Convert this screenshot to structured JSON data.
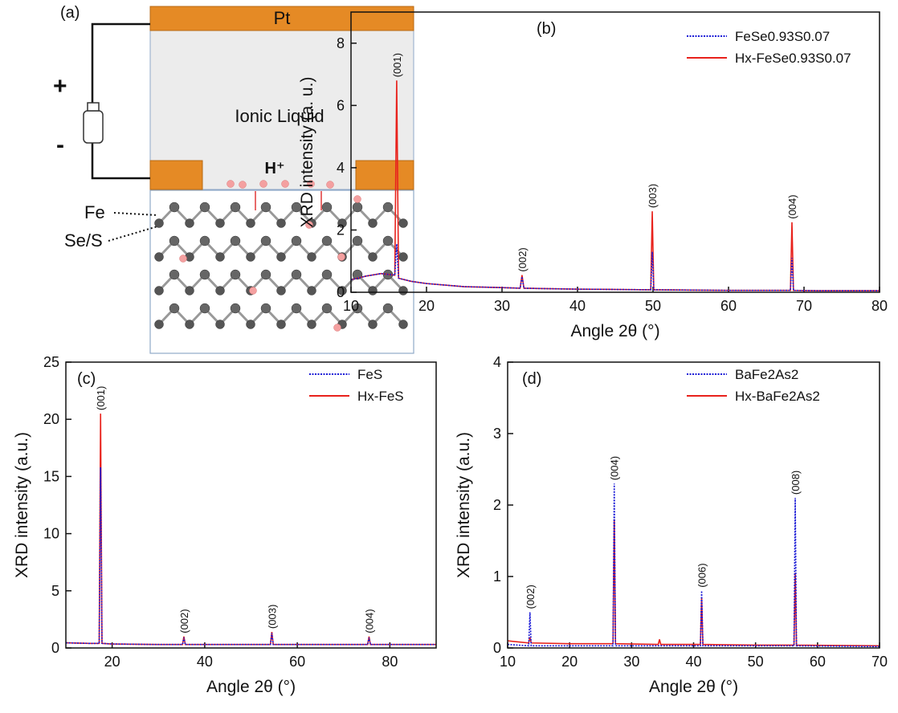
{
  "diagram": {
    "panel_label": "(a)",
    "electrode": "Pt",
    "electrolyte": "Ionic Liquid",
    "ion": "H⁺",
    "plus": "+",
    "minus": "-",
    "atom_1": "Fe",
    "atom_2": "Se/S"
  },
  "chart_data": [
    {
      "type": "line",
      "panel_label": "(b)",
      "x_label": "Angle 2θ (°)",
      "y_label": "XRD intensity (a. u.)",
      "x": [
        10,
        12,
        14,
        15.8,
        16.05,
        16.3,
        18,
        20,
        25,
        30,
        32.4,
        32.65,
        32.9,
        35,
        40,
        45,
        49.7,
        49.9,
        50.1,
        55,
        60,
        65,
        68.2,
        68.4,
        68.6,
        72,
        80
      ],
      "series": [
        {
          "name": "Hx-FeSe0.93S0.07",
          "color": "#e8221c",
          "style": "solid",
          "values": [
            0.4,
            0.52,
            0.6,
            0.55,
            6.8,
            0.45,
            0.35,
            0.28,
            0.18,
            0.15,
            0.13,
            0.55,
            0.13,
            0.12,
            0.1,
            0.09,
            0.08,
            2.6,
            0.08,
            0.07,
            0.06,
            0.06,
            0.06,
            2.25,
            0.06,
            0.05,
            0.05
          ]
        },
        {
          "name": "FeSe0.93S0.07",
          "color": "#1a1ad6",
          "style": "dotted",
          "values": [
            0.4,
            0.52,
            0.6,
            0.55,
            1.55,
            0.45,
            0.35,
            0.28,
            0.18,
            0.15,
            0.13,
            0.5,
            0.13,
            0.12,
            0.1,
            0.09,
            0.08,
            1.3,
            0.08,
            0.07,
            0.06,
            0.06,
            0.06,
            1.1,
            0.06,
            0.05,
            0.05
          ]
        }
      ],
      "xlim": [
        10,
        80
      ],
      "xticks": [
        10,
        20,
        30,
        40,
        50,
        60,
        70,
        80
      ],
      "ylim": [
        0,
        9
      ],
      "yticks": [
        0,
        2,
        4,
        6,
        8
      ],
      "legend": "upper right",
      "annotations": [
        {
          "text": "(001)",
          "x": 16.05,
          "y": 6.8
        },
        {
          "text": "(002)",
          "x": 32.65,
          "y": 0.55
        },
        {
          "text": "(003)",
          "x": 49.9,
          "y": 2.6
        },
        {
          "text": "(004)",
          "x": 68.4,
          "y": 2.25
        }
      ]
    },
    {
      "type": "line",
      "panel_label": "(c)",
      "x_label": "Angle 2θ (°)",
      "y_label": "XRD intensity (a.u.)",
      "x": [
        10,
        15,
        17.2,
        17.5,
        17.8,
        20,
        30,
        35.2,
        35.5,
        35.8,
        45,
        54.2,
        54.5,
        54.8,
        65,
        75.2,
        75.5,
        75.8,
        90
      ],
      "series": [
        {
          "name": "Hx-FeS",
          "color": "#e8221c",
          "style": "solid",
          "values": [
            0.45,
            0.4,
            0.4,
            20.5,
            0.4,
            0.35,
            0.3,
            0.3,
            1.0,
            0.3,
            0.3,
            0.3,
            1.4,
            0.3,
            0.3,
            0.3,
            1.0,
            0.3,
            0.3
          ]
        },
        {
          "name": "FeS",
          "color": "#1a1ad6",
          "style": "dotted",
          "values": [
            0.45,
            0.4,
            0.4,
            15.8,
            0.4,
            0.35,
            0.3,
            0.3,
            0.9,
            0.3,
            0.3,
            0.3,
            1.3,
            0.3,
            0.3,
            0.3,
            0.9,
            0.3,
            0.3
          ]
        }
      ],
      "xlim": [
        10,
        90
      ],
      "xticks": [
        20,
        40,
        60,
        80
      ],
      "ylim": [
        0,
        25
      ],
      "yticks": [
        0,
        5,
        10,
        15,
        20,
        25
      ],
      "legend": "upper right",
      "annotations": [
        {
          "text": "(001)",
          "x": 17.5,
          "y": 20.5
        },
        {
          "text": "(002)",
          "x": 35.5,
          "y": 1.0
        },
        {
          "text": "(003)",
          "x": 54.5,
          "y": 1.4
        },
        {
          "text": "(004)",
          "x": 75.5,
          "y": 1.0
        }
      ]
    },
    {
      "type": "line",
      "panel_label": "(d)",
      "x_label": "Angle 2θ (°)",
      "y_label": "XRD intensity (a.u.)",
      "x": [
        10,
        13.4,
        13.6,
        13.8,
        20,
        27,
        27.2,
        27.4,
        34.3,
        34.5,
        34.7,
        41.1,
        41.3,
        41.5,
        50,
        56.2,
        56.4,
        56.6,
        70
      ],
      "series": [
        {
          "name": "Hx-BaFe2As2",
          "color": "#e8221c",
          "style": "solid",
          "values": [
            0.1,
            0.07,
            0.15,
            0.07,
            0.06,
            0.06,
            1.8,
            0.06,
            0.05,
            0.12,
            0.05,
            0.05,
            0.7,
            0.05,
            0.04,
            0.04,
            1.05,
            0.04,
            0.03
          ]
        },
        {
          "name": "BaFe2As2",
          "color": "#1a1ad6",
          "style": "dotted",
          "values": [
            0.05,
            0.03,
            0.5,
            0.03,
            0.03,
            0.03,
            2.3,
            0.03,
            0.03,
            0.03,
            0.03,
            0.03,
            0.8,
            0.03,
            0.03,
            0.03,
            2.1,
            0.03,
            0.02
          ]
        }
      ],
      "xlim": [
        10,
        70
      ],
      "xticks": [
        10,
        20,
        30,
        40,
        50,
        60,
        70
      ],
      "ylim": [
        0,
        4
      ],
      "yticks": [
        0,
        1,
        2,
        3,
        4
      ],
      "legend": "upper right",
      "annotations": [
        {
          "text": "(002)",
          "x": 13.6,
          "y": 0.5
        },
        {
          "text": "(004)",
          "x": 27.2,
          "y": 2.3
        },
        {
          "text": "(006)",
          "x": 41.3,
          "y": 0.8
        },
        {
          "text": "(008)",
          "x": 56.4,
          "y": 2.1
        }
      ]
    }
  ]
}
